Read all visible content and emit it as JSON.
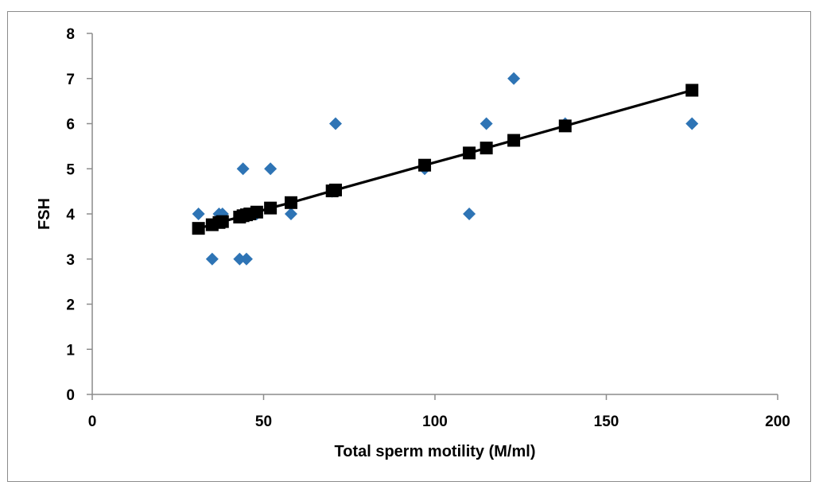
{
  "chart_data": {
    "type": "scatter",
    "title": "",
    "xlabel": "Total sperm motility (M/ml)",
    "ylabel": "FSH",
    "xlim": [
      0,
      200
    ],
    "ylim": [
      0,
      8
    ],
    "x_ticks": [
      "0",
      "50",
      "100",
      "150",
      "200"
    ],
    "y_ticks": [
      "0",
      "1",
      "2",
      "3",
      "4",
      "5",
      "6",
      "7",
      "8"
    ],
    "grid": false,
    "legend": "none",
    "colors": {
      "observed": "#2e74b5",
      "fitted": "#000000",
      "axis": "#8c8c8c"
    },
    "series": [
      {
        "marker": "diamond",
        "points": [
          {
            "x": 31,
            "y": 4
          },
          {
            "x": 35,
            "y": 3
          },
          {
            "x": 37,
            "y": 4
          },
          {
            "x": 38,
            "y": 4
          },
          {
            "x": 43,
            "y": 3
          },
          {
            "x": 44,
            "y": 5
          },
          {
            "x": 45,
            "y": 3
          },
          {
            "x": 46,
            "y": 4
          },
          {
            "x": 48,
            "y": 4
          },
          {
            "x": 52,
            "y": 5
          },
          {
            "x": 58,
            "y": 4
          },
          {
            "x": 70,
            "y": 4.5
          },
          {
            "x": 71,
            "y": 6
          },
          {
            "x": 97,
            "y": 5
          },
          {
            "x": 110,
            "y": 4
          },
          {
            "x": 115,
            "y": 6
          },
          {
            "x": 123,
            "y": 7
          },
          {
            "x": 138,
            "y": 6
          },
          {
            "x": 175,
            "y": 6
          }
        ]
      },
      {
        "marker": "square",
        "line": true,
        "points": [
          {
            "x": 31,
            "y": 3.68
          },
          {
            "x": 35,
            "y": 3.76
          },
          {
            "x": 37,
            "y": 3.81
          },
          {
            "x": 38,
            "y": 3.83
          },
          {
            "x": 43,
            "y": 3.93
          },
          {
            "x": 44,
            "y": 3.96
          },
          {
            "x": 45,
            "y": 3.98
          },
          {
            "x": 46,
            "y": 4.0
          },
          {
            "x": 48,
            "y": 4.04
          },
          {
            "x": 52,
            "y": 4.13
          },
          {
            "x": 58,
            "y": 4.25
          },
          {
            "x": 70,
            "y": 4.51
          },
          {
            "x": 71,
            "y": 4.53
          },
          {
            "x": 97,
            "y": 5.08
          },
          {
            "x": 110,
            "y": 5.35
          },
          {
            "x": 115,
            "y": 5.46
          },
          {
            "x": 123,
            "y": 5.63
          },
          {
            "x": 138,
            "y": 5.95
          },
          {
            "x": 175,
            "y": 6.74
          }
        ]
      }
    ]
  }
}
